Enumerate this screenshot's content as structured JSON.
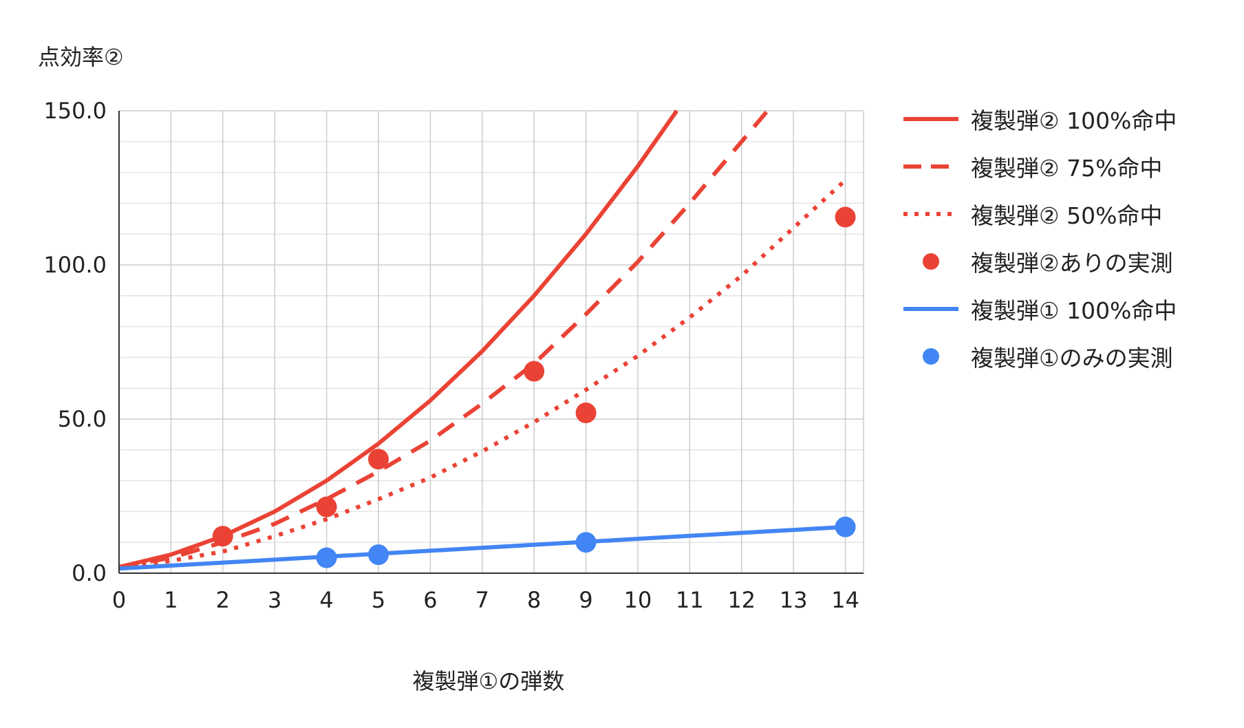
{
  "chart_data": {
    "type": "line",
    "ylabel": "点効率②",
    "xlabel": "複製弾①の弾数",
    "ylim": [
      0,
      150
    ],
    "xlim": [
      0,
      14.35
    ],
    "y_ticks": [
      "0.0",
      "50.0",
      "100.0",
      "150.0"
    ],
    "y_tick_values": [
      0,
      50,
      100,
      150
    ],
    "x_ticks": [
      "0",
      "1",
      "2",
      "3",
      "4",
      "5",
      "6",
      "7",
      "8",
      "9",
      "10",
      "11",
      "12",
      "13",
      "14"
    ],
    "grid": true,
    "legend_position": "right",
    "series": [
      {
        "name": "複製弾② 100%命中",
        "style": "solid",
        "color": "#ea4335",
        "points": [
          [
            0,
            2
          ],
          [
            1,
            6
          ],
          [
            2,
            12
          ],
          [
            3,
            20
          ],
          [
            4,
            30
          ],
          [
            5,
            42
          ],
          [
            6,
            56
          ],
          [
            7,
            72
          ],
          [
            8,
            90
          ],
          [
            9,
            110
          ],
          [
            10,
            132
          ],
          [
            10.75,
            150
          ]
        ]
      },
      {
        "name": "複製弾② 75%命中",
        "style": "dashed",
        "color": "#ea4335",
        "points": [
          [
            0,
            2
          ],
          [
            1,
            5
          ],
          [
            2,
            10
          ],
          [
            3,
            16
          ],
          [
            4,
            24
          ],
          [
            5,
            33
          ],
          [
            6,
            43
          ],
          [
            7,
            55
          ],
          [
            8,
            68
          ],
          [
            9,
            84
          ],
          [
            10,
            101
          ],
          [
            11,
            120
          ],
          [
            12,
            140
          ],
          [
            12.5,
            150
          ]
        ]
      },
      {
        "name": "複製弾② 50%命中",
        "style": "dotted",
        "color": "#ea4335",
        "points": [
          [
            0,
            1.5
          ],
          [
            1,
            4
          ],
          [
            2,
            7
          ],
          [
            3,
            12
          ],
          [
            4,
            17.5
          ],
          [
            5,
            24
          ],
          [
            6,
            31
          ],
          [
            7,
            39.5
          ],
          [
            8,
            49
          ],
          [
            9,
            59.5
          ],
          [
            10,
            70.5
          ],
          [
            11,
            83
          ],
          [
            12,
            96.5
          ],
          [
            13,
            112
          ],
          [
            14,
            127.5
          ]
        ]
      },
      {
        "name": "複製弾②ありの実測",
        "style": "points",
        "color": "#ea4335",
        "points": [
          [
            2,
            12
          ],
          [
            4,
            21.5
          ],
          [
            5,
            37
          ],
          [
            8,
            65.5
          ],
          [
            9,
            52
          ],
          [
            14,
            115.5
          ]
        ]
      },
      {
        "name": "複製弾① 100%命中",
        "style": "solid",
        "color": "#4285f4",
        "points": [
          [
            0,
            1.5
          ],
          [
            14,
            15
          ]
        ]
      },
      {
        "name": "複製弾①のみの実測",
        "style": "points",
        "color": "#4285f4",
        "points": [
          [
            4,
            5
          ],
          [
            5,
            6
          ],
          [
            9,
            10
          ],
          [
            14,
            15
          ]
        ]
      }
    ]
  }
}
